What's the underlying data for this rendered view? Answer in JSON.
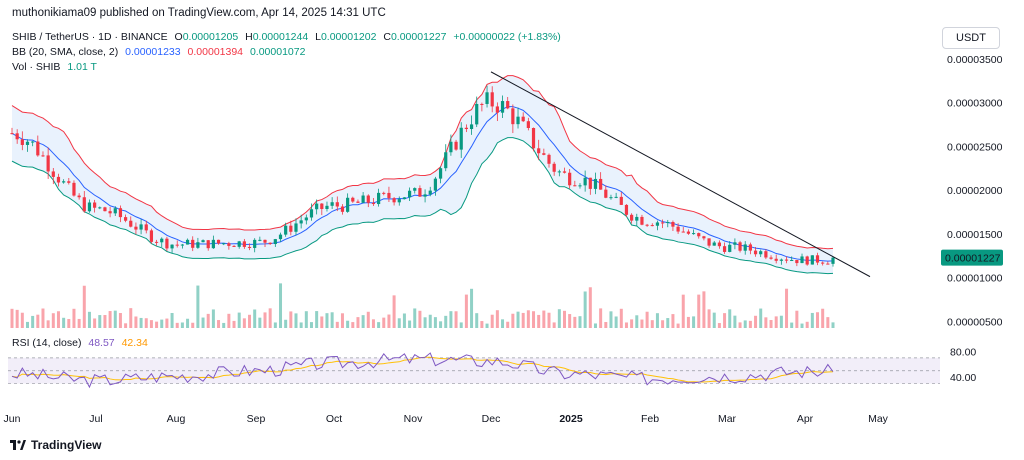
{
  "header": {
    "publisher_line": "muthonikiama09 published on TradingView.com, Apr 14, 2025 14:31 UTC"
  },
  "legend": {
    "symbol": "SHIB / TetherUS · 1D · BINANCE",
    "ohlc": {
      "o_label": "O",
      "o_value": "0.00001205",
      "h_label": "H",
      "h_value": "0.00001244",
      "l_label": "L",
      "l_value": "0.00001202",
      "c_label": "C",
      "c_value": "0.00001227",
      "change": "+0.00000022 (+1.83%)"
    },
    "bb": {
      "label": "BB (20, SMA, close, 2)",
      "basis": "0.00001233",
      "upper": "0.00001394",
      "lower": "0.00001072"
    },
    "vol": {
      "label": "Vol · SHIB",
      "value": "1.01 T"
    },
    "rsi": {
      "label": "RSI (14, close)",
      "value": "48.57",
      "ma": "42.34"
    }
  },
  "currency_badge": "USDT",
  "branding": {
    "logo_text": "TradingView"
  },
  "colors": {
    "up": "#089981",
    "down": "#f23645",
    "bb_basis": "#2962ff",
    "bb_upper": "#f23645",
    "bb_lower": "#089981",
    "bb_fill": "#e3effd",
    "rsi_line": "#7e57c2",
    "rsi_ma": "#ffc107",
    "rsi_band": "#ede7f6",
    "last_price_bg": "#089981",
    "trendline": "#131722"
  },
  "chart_data": {
    "type": "candlestick",
    "price_axis": {
      "ticks": [
        3.5e-05,
        3e-05,
        2.5e-05,
        2e-05,
        1.5e-05,
        1e-05,
        5e-06
      ],
      "tick_labels": [
        "0.00003500",
        "0.00003000",
        "0.00002500",
        "0.00002000",
        "0.00001500",
        "0.00001000",
        "0.00000500"
      ],
      "last_price": 1.227e-05,
      "last_price_label": "0.00001227"
    },
    "time_axis": {
      "labels": [
        "Jun",
        "Jul",
        "Aug",
        "Sep",
        "Oct",
        "Nov",
        "Dec",
        "2025",
        "Feb",
        "Mar",
        "Apr",
        "May"
      ],
      "bold": [
        "2025"
      ]
    },
    "close_by_month": [
      {
        "month": "Jun",
        "value": 2.65e-05
      },
      {
        "month": "Jul",
        "value": 1.78e-05
      },
      {
        "month": "Aug",
        "value": 1.38e-05
      },
      {
        "month": "Sep",
        "value": 1.4e-05
      },
      {
        "month": "Oct",
        "value": 1.82e-05
      },
      {
        "month": "Nov",
        "value": 1.95e-05
      },
      {
        "month": "Dec",
        "value": 3e-05
      },
      {
        "month": "2025",
        "value": 2.15e-05
      },
      {
        "month": "Feb",
        "value": 1.65e-05
      },
      {
        "month": "Mar",
        "value": 1.35e-05
      },
      {
        "month": "Apr",
        "value": 1.2e-05
      }
    ],
    "rsi_axis": {
      "ticks": [
        80,
        40
      ],
      "tick_labels": [
        "80.00",
        "40.00"
      ],
      "band": [
        30,
        70
      ]
    },
    "rsi_by_month": [
      {
        "month": "Jun",
        "value": 45
      },
      {
        "month": "Jul",
        "value": 35
      },
      {
        "month": "Aug",
        "value": 42
      },
      {
        "month": "Sep",
        "value": 50
      },
      {
        "month": "Oct",
        "value": 62
      },
      {
        "month": "Nov",
        "value": 68
      },
      {
        "month": "Dec",
        "value": 65
      },
      {
        "month": "2025",
        "value": 45
      },
      {
        "month": "Feb",
        "value": 38
      },
      {
        "month": "Mar",
        "value": 42
      },
      {
        "month": "Apr",
        "value": 48.57
      }
    ],
    "trendline": {
      "from": {
        "month": "Dec",
        "value": 3.35e-05
      },
      "to": {
        "month": "Apr",
        "value": 1.01e-05
      }
    }
  }
}
